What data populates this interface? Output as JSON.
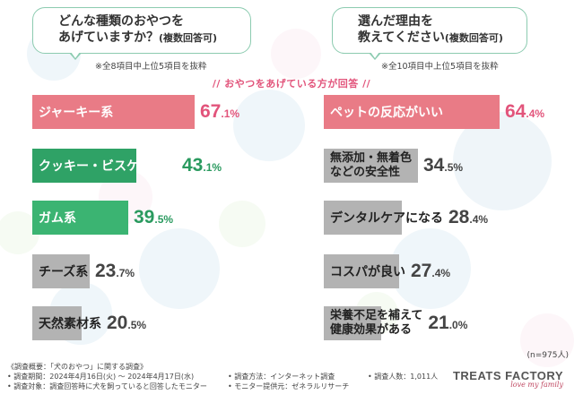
{
  "left_question": {
    "line1": "どんな種類のおやつを",
    "line2_main": "あげていますか？",
    "line2_sub": "(複数回答可)"
  },
  "right_question": {
    "line1": "選んだ理由を",
    "line2_main": "教えてください",
    "line2_sub": "(複数回答可)"
  },
  "left_note": "※全8項目中上位5項目を抜粋",
  "right_note": "※全10項目中上位5項目を抜粋",
  "center_note": "// おやつをあげている方が回答 //",
  "sample_size": "(n=975人)",
  "footer": {
    "title": "《調査概要：「犬のおやつ」に関する調査》",
    "period": "• 調査期間：2024年4月16日(火) ～ 2024年4月17日(水)",
    "target": "• 調査対象：調査回答時に犬を飼っていると回答したモニター",
    "method": "• 調査方法：インターネット調査",
    "provider": "• モニター提供元：ゼネラルリサーチ",
    "respondents": "• 調査人数：1,011人"
  },
  "brand": {
    "name": "TREATS FACTORY",
    "tagline": "love my family"
  },
  "colors": {
    "pink": "#e97b86",
    "green": "#2fa266",
    "gray": "#b3b3b3",
    "accent": "#e2547b"
  },
  "chart_data": [
    {
      "type": "bar",
      "orientation": "horizontal",
      "title": "どんな種類のおやつをあげていますか？(複数回答可)",
      "categories": [
        "ジャーキー系",
        "クッキー・ビスケット系",
        "ガム系",
        "チーズ系",
        "天然素材系"
      ],
      "values": [
        67.1,
        43.1,
        39.5,
        23.7,
        20.5
      ],
      "value_labels": [
        {
          "big": "67",
          "small": ".1",
          "unit": "%"
        },
        {
          "big": "43",
          "small": ".1",
          "unit": "%"
        },
        {
          "big": "39",
          "small": ".5",
          "unit": "%"
        },
        {
          "big": "23",
          "small": ".7",
          "unit": "%"
        },
        {
          "big": "20",
          "small": ".5",
          "unit": "%"
        }
      ],
      "xlim": [
        0,
        100
      ],
      "unit": "%"
    },
    {
      "type": "bar",
      "orientation": "horizontal",
      "title": "選んだ理由を教えてください(複数回答可)",
      "categories": [
        "ペットの反応がいい",
        "無添加・無着色などの安全性",
        "デンタルケアになる",
        "コスパが良い",
        "栄養不足を補えて健康効果がある"
      ],
      "category_lines": [
        [
          "ペットの反応がいい"
        ],
        [
          "無添加・無着色",
          "などの安全性"
        ],
        [
          "デンタルケアになる"
        ],
        [
          "コスパが良い"
        ],
        [
          "栄養不足を補えて",
          "健康効果がある"
        ]
      ],
      "values": [
        64.4,
        34.5,
        28.4,
        27.4,
        21.0
      ],
      "value_labels": [
        {
          "big": "64",
          "small": ".4",
          "unit": "%"
        },
        {
          "big": "34",
          "small": ".5",
          "unit": "%"
        },
        {
          "big": "28",
          "small": ".4",
          "unit": "%"
        },
        {
          "big": "27",
          "small": ".4",
          "unit": "%"
        },
        {
          "big": "21",
          "small": ".0",
          "unit": "%"
        }
      ],
      "xlim": [
        0,
        100
      ],
      "unit": "%"
    }
  ]
}
